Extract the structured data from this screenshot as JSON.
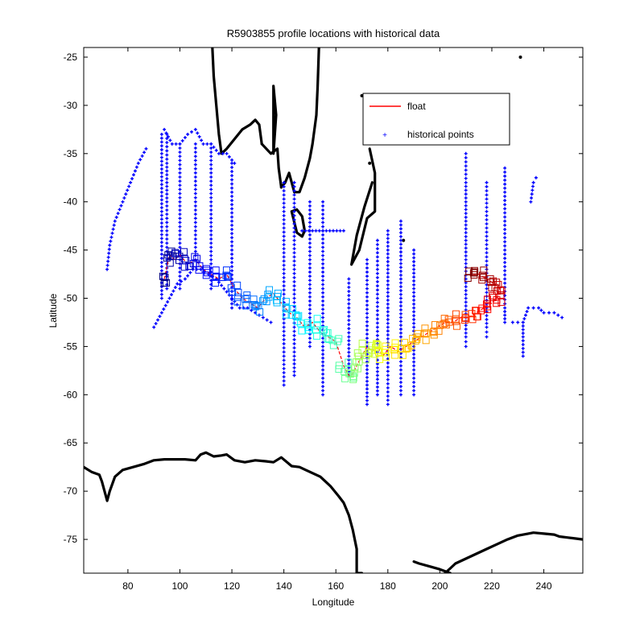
{
  "chart_data": {
    "type": "scatter",
    "title": "R5903855 profile locations with historical data",
    "xlabel": "Longitude",
    "ylabel": "Latitude",
    "xlim": [
      63,
      255
    ],
    "ylim": [
      -78.5,
      -24
    ],
    "xticks": [
      80,
      100,
      120,
      140,
      160,
      180,
      200,
      220,
      240
    ],
    "yticks": [
      -25,
      -30,
      -35,
      -40,
      -45,
      -50,
      -55,
      -60,
      -65,
      -70,
      -75
    ],
    "grid": false,
    "legend": {
      "placement": "top-right",
      "entries": [
        {
          "label": "float",
          "color": "#ff0000",
          "marker": "line"
        },
        {
          "label": "historical points",
          "color": "#0000ff",
          "marker": "dot"
        }
      ]
    },
    "series": [
      {
        "name": "float",
        "kind": "line-with-squares",
        "colormap": "jet",
        "x": [
          94,
          96,
          98,
          100,
          103,
          106,
          109,
          112,
          115,
          118,
          121,
          124,
          127,
          130,
          133,
          136,
          139,
          142,
          145,
          148,
          151,
          154,
          157,
          160,
          163,
          165,
          166,
          168,
          170,
          172,
          174,
          176,
          178,
          181,
          184,
          187,
          190,
          193,
          196,
          199,
          202,
          205,
          208,
          211,
          214,
          217,
          220,
          222,
          223,
          221,
          218,
          215,
          212
        ],
        "y": [
          -48,
          -45.5,
          -46,
          -45.5,
          -46.5,
          -46,
          -47,
          -47.5,
          -48,
          -47.5,
          -49,
          -50,
          -50.5,
          -51,
          -50,
          -49.5,
          -50.5,
          -51.5,
          -52,
          -53,
          -52.5,
          -53.5,
          -54,
          -54.5,
          -57,
          -58,
          -58,
          -57,
          -56,
          -55,
          -55.5,
          -55,
          -56,
          -55,
          -55.5,
          -55,
          -54.5,
          -54,
          -53.5,
          -53,
          -52.5,
          -52.5,
          -52,
          -52,
          -51.5,
          -51,
          -50.5,
          -50,
          -49,
          -48.5,
          -48,
          -47.5,
          -47.5
        ]
      },
      {
        "name": "historical points",
        "kind": "dots",
        "color": "#0000ff",
        "tracks": [
          {
            "x": [
              87,
              84,
              81,
              78,
              75,
              73,
              72
            ],
            "y": [
              -34.5,
              -36,
              -38,
              -40,
              -42,
              -44.5,
              -47
            ]
          },
          {
            "x": [
              93,
              93,
              93,
              93,
              93,
              93
            ],
            "y": [
              -33,
              -37,
              -41,
              -45,
              -48,
              -50
            ]
          },
          {
            "x": [
              95,
              95,
              95,
              95,
              95,
              95
            ],
            "y": [
              -33,
              -36,
              -40,
              -43,
              -46,
              -49
            ]
          },
          {
            "x": [
              100,
              100,
              100,
              100,
              100,
              100
            ],
            "y": [
              -34,
              -37,
              -40,
              -43,
              -46,
              -49
            ]
          },
          {
            "x": [
              106,
              106,
              106,
              106,
              106
            ],
            "y": [
              -34,
              -37,
              -40,
              -43,
              -46
            ]
          },
          {
            "x": [
              112,
              112,
              112,
              112,
              112,
              112
            ],
            "y": [
              -34,
              -37,
              -40,
              -43,
              -46,
              -49
            ]
          },
          {
            "x": [
              120,
              120,
              120,
              120,
              120,
              120
            ],
            "y": [
              -36,
              -39,
              -42,
              -45,
              -48,
              -51
            ]
          },
          {
            "x": [
              94,
              97,
              100,
              103,
              106,
              109,
              112,
              115,
              118,
              121
            ],
            "y": [
              -32.5,
              -34,
              -34,
              -33,
              -32.5,
              -34,
              -34,
              -35,
              -35,
              -36
            ]
          },
          {
            "x": [
              90,
              93,
              96,
              99,
              102,
              105,
              108,
              111,
              114,
              117,
              120,
              123,
              126,
              129,
              132,
              135
            ],
            "y": [
              -53,
              -51.5,
              -50,
              -48.5,
              -48,
              -47,
              -47,
              -47.5,
              -48,
              -49,
              -50,
              -51,
              -51,
              -51.5,
              -52,
              -52.5
            ]
          },
          {
            "x": [
              140,
              140,
              140,
              140,
              140,
              140,
              140,
              140
            ],
            "y": [
              -38,
              -41,
              -44,
              -47,
              -50,
              -53,
              -56,
              -59
            ]
          },
          {
            "x": [
              144,
              144,
              144,
              144,
              144,
              144,
              144,
              144
            ],
            "y": [
              -38,
              -41,
              -44,
              -47,
              -50,
              -53,
              -56,
              -58
            ]
          },
          {
            "x": [
              150,
              150,
              150,
              150,
              150,
              150
            ],
            "y": [
              -40,
              -43,
              -46,
              -49,
              -52,
              -55
            ]
          },
          {
            "x": [
              155,
              155,
              155,
              155,
              155,
              155,
              155,
              155
            ],
            "y": [
              -40,
              -43,
              -46,
              -49,
              -52,
              -55,
              -57,
              -60
            ]
          },
          {
            "x": [
              147,
              151,
              155,
              159,
              163
            ],
            "y": [
              -43,
              -43,
              -43,
              -43,
              -43
            ]
          },
          {
            "x": [
              165,
              165,
              165,
              165,
              165
            ],
            "y": [
              -48,
              -51,
              -54,
              -56,
              -58
            ]
          },
          {
            "x": [
              172,
              172,
              172,
              172,
              172,
              172,
              172
            ],
            "y": [
              -46,
              -49,
              -52,
              -55,
              -57,
              -59,
              -61
            ]
          },
          {
            "x": [
              176,
              176,
              176,
              176,
              176,
              176
            ],
            "y": [
              -44,
              -47,
              -50,
              -53,
              -56,
              -60
            ]
          },
          {
            "x": [
              180,
              180,
              180,
              180,
              180,
              180
            ],
            "y": [
              -43,
              -47,
              -51,
              -55,
              -58,
              -61
            ]
          },
          {
            "x": [
              185,
              185,
              185,
              185,
              185,
              185
            ],
            "y": [
              -42,
              -46,
              -50,
              -54,
              -57,
              -60
            ]
          },
          {
            "x": [
              190,
              190,
              190,
              190,
              190
            ],
            "y": [
              -45,
              -49,
              -53,
              -57,
              -60
            ]
          },
          {
            "x": [
              210,
              210,
              210,
              210,
              210,
              210,
              210,
              210,
              210,
              210,
              210
            ],
            "y": [
              -35,
              -38,
              -40,
              -42,
              -44,
              -46,
              -48,
              -50,
              -52,
              -54,
              -55
            ]
          },
          {
            "x": [
              218,
              218,
              218,
              218,
              218,
              218,
              218,
              218
            ],
            "y": [
              -38,
              -41,
              -44,
              -47,
              -49,
              -51,
              -53,
              -54
            ]
          },
          {
            "x": [
              225,
              225,
              225,
              225,
              225,
              225,
              225
            ],
            "y": [
              -36.5,
              -39,
              -42,
              -45,
              -48,
              -51,
              -52.5
            ]
          },
          {
            "x": [
              228,
              230,
              232,
              234,
              236,
              238,
              240,
              242,
              244,
              247
            ],
            "y": [
              -52.5,
              -52.5,
              -52.5,
              -51,
              -51,
              -51,
              -51.5,
              -51.5,
              -51.5,
              -52
            ]
          },
          {
            "x": [
              232,
              232,
              232
            ],
            "y": [
              -52.5,
              -54,
              -56
            ]
          },
          {
            "x": [
              235,
              236,
              237
            ],
            "y": [
              -40,
              -38,
              -37.5
            ]
          }
        ]
      },
      {
        "name": "",
        "kind": "coastline",
        "color": "#000000",
        "segments": [
          {
            "x": [
              112.5,
              113,
              114,
              115,
              116,
              118,
              121,
              124,
              127,
              129,
              130.5,
              131.5
            ],
            "y": [
              -24,
              -27,
              -30,
              -33,
              -35,
              -34.5,
              -33.5,
              -32.5,
              -32,
              -31.5,
              -32,
              -34
            ]
          },
          {
            "x": [
              131.5,
              135,
              137.5,
              138,
              139
            ],
            "y": [
              -34,
              -35,
              -34.5,
              -36.5,
              -38.5
            ]
          },
          {
            "x": [
              139,
              140.5,
              142,
              144,
              146,
              148,
              150,
              151,
              152.5,
              153,
              153.5
            ],
            "y": [
              -38.5,
              -38,
              -37,
              -39,
              -39,
              -37.5,
              -35.5,
              -34,
              -31,
              -28,
              -24
            ]
          },
          {
            "x": [
              143,
              145,
              147,
              148,
              147,
              145,
              143
            ],
            "y": [
              -41,
              -40.8,
              -41.5,
              -43,
              -43.6,
              -43.2,
              -41
            ]
          },
          {
            "x": [
              136,
              137,
              136,
              136
            ],
            "y": [
              -28,
              -31,
              -35,
              -28
            ]
          },
          {
            "x": [
              173,
              175,
              175,
              172,
              169,
              166,
              168,
              171,
              174
            ],
            "y": [
              -34.5,
              -37,
              -41,
              -41.7,
              -45,
              -46.5,
              -43.5,
              -40.5,
              -38
            ]
          },
          {
            "x": [
              63,
              66,
              69,
              70,
              72,
              73,
              75,
              78,
              82,
              86,
              90,
              94,
              98,
              102,
              106,
              108,
              110,
              113,
              116,
              118,
              121,
              125,
              129,
              133,
              136,
              139,
              143,
              146,
              150,
              154,
              158,
              161,
              163,
              165,
              166.5,
              168,
              168,
              170
            ],
            "y": [
              -67.5,
              -68,
              -68.3,
              -69,
              -71,
              -70,
              -68.5,
              -67.8,
              -67.5,
              -67.2,
              -66.8,
              -66.7,
              -66.7,
              -66.7,
              -66.8,
              -66.2,
              -66,
              -66.4,
              -66.3,
              -66.2,
              -66.8,
              -67,
              -66.8,
              -66.9,
              -67,
              -66.5,
              -67.4,
              -67.5,
              -68,
              -68.5,
              -69.5,
              -70.5,
              -71.2,
              -72.5,
              -74,
              -76,
              -78.5,
              -78.5
            ]
          },
          {
            "x": [
              202,
              206,
              210,
              214,
              218,
              222,
              226,
              230,
              234,
              236,
              240,
              244,
              246,
              249,
              252,
              255
            ],
            "y": [
              -78.5,
              -77.5,
              -77,
              -76.5,
              -76,
              -75.5,
              -75,
              -74.6,
              -74.4,
              -74.3,
              -74.4,
              -74.5,
              -74.7,
              -74.8,
              -74.9,
              -75
            ]
          },
          {
            "x": [
              190,
              192,
              196,
              200,
              204
            ],
            "y": [
              -77.3,
              -77.5,
              -77.8,
              -78.1,
              -78.5
            ]
          }
        ]
      }
    ]
  }
}
